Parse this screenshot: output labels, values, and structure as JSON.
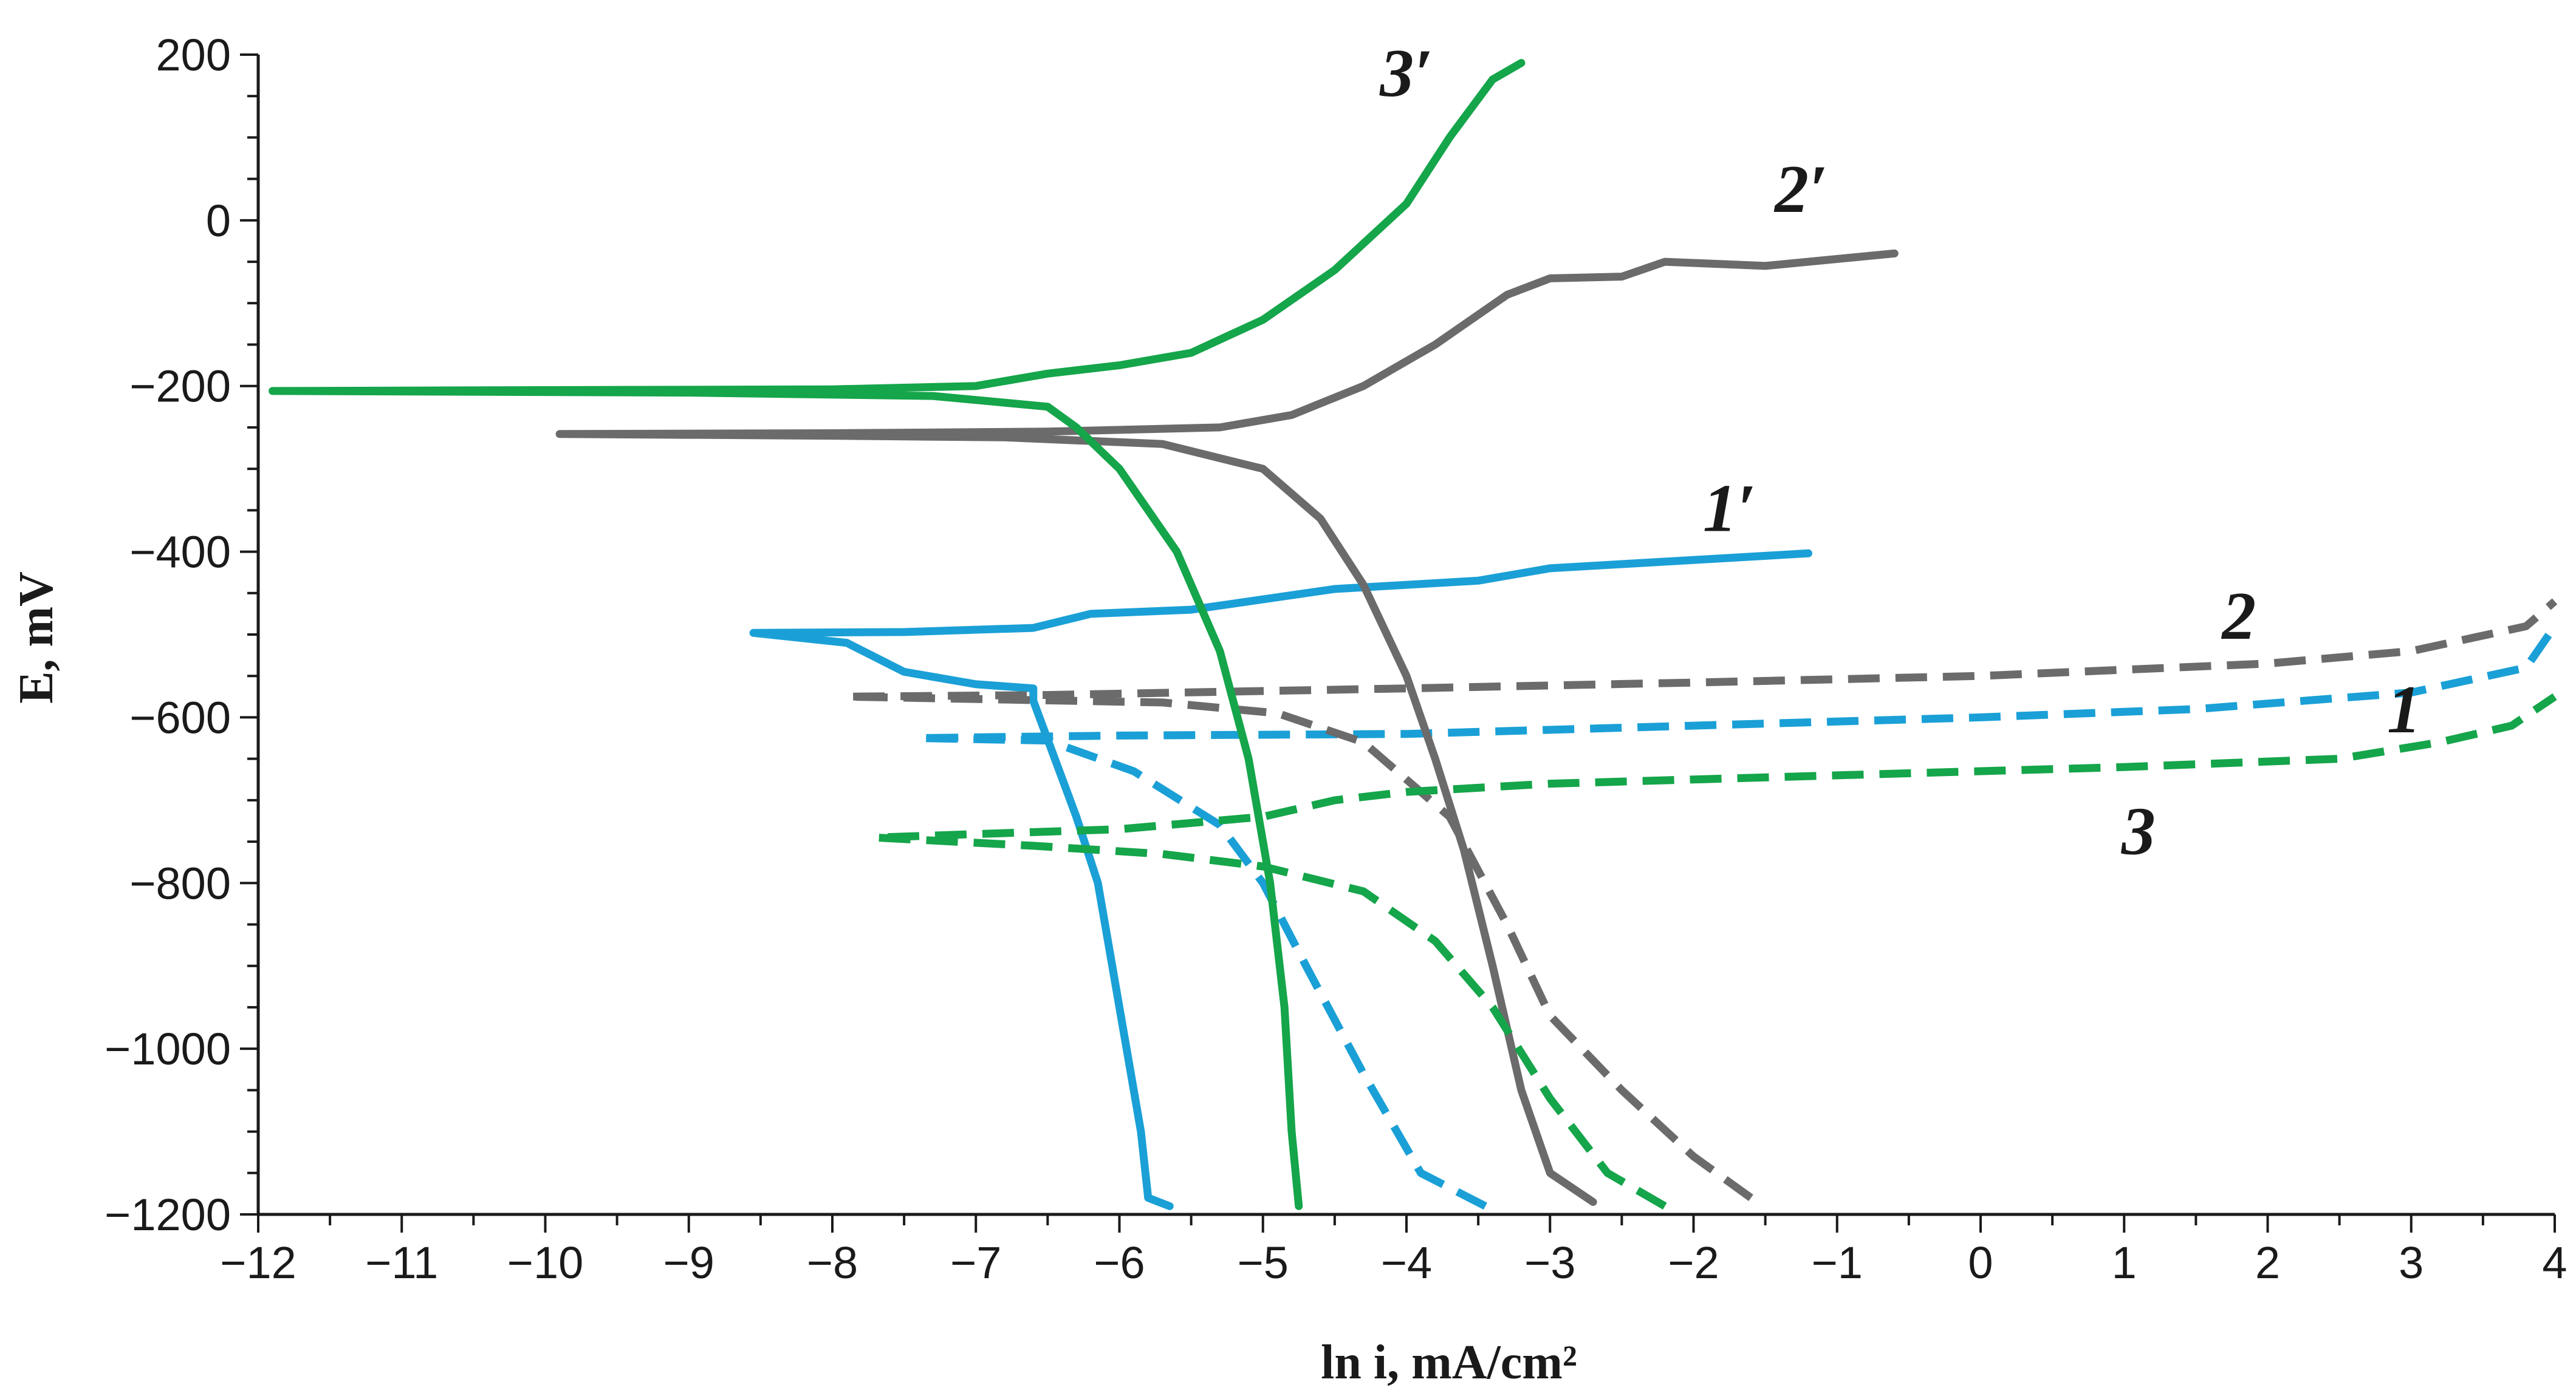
{
  "colors": {
    "blue": "#1aa0d6",
    "gray": "#6b6b6b",
    "green": "#15a54a",
    "axis": "#1a1a1a"
  },
  "chart_data": {
    "type": "line",
    "xlabel": "ln i, mA/cm²",
    "ylabel": "E, mV",
    "xlim": [
      -12,
      4
    ],
    "ylim": [
      -1200,
      200
    ],
    "xticks": [
      "−12",
      "−11",
      "−10",
      "−9",
      "−8",
      "−7",
      "−6",
      "−5",
      "−4",
      "−3",
      "−2",
      "−1",
      "0",
      "1",
      "2",
      "3",
      "4"
    ],
    "yticks": [
      "200",
      "0",
      "−200",
      "−400",
      "−600",
      "−800",
      "−1000",
      "−1200"
    ],
    "grid": false,
    "series": [
      {
        "name": "1′",
        "color": "#1aa0d6",
        "dash": false,
        "points": [
          [
            -5.65,
            -1190
          ],
          [
            -5.8,
            -1180
          ],
          [
            -5.85,
            -1100
          ],
          [
            -5.95,
            -1000
          ],
          [
            -6.05,
            -900
          ],
          [
            -6.15,
            -800
          ],
          [
            -6.3,
            -720
          ],
          [
            -6.45,
            -650
          ],
          [
            -6.6,
            -580
          ],
          [
            -6.6,
            -565
          ],
          [
            -7.0,
            -560
          ],
          [
            -7.5,
            -545
          ],
          [
            -7.9,
            -510
          ],
          [
            -8.55,
            -498
          ],
          [
            -7.5,
            -497
          ],
          [
            -6.6,
            -492
          ],
          [
            -6.2,
            -475
          ],
          [
            -5.5,
            -470
          ],
          [
            -4.5,
            -445
          ],
          [
            -3.5,
            -435
          ],
          [
            -3.0,
            -420
          ],
          [
            -2.0,
            -410
          ],
          [
            -1.2,
            -402
          ]
        ]
      },
      {
        "name": "1",
        "color": "#1aa0d6",
        "dash": true,
        "points": [
          [
            -3.45,
            -1190
          ],
          [
            -3.9,
            -1150
          ],
          [
            -4.3,
            -1030
          ],
          [
            -4.7,
            -900
          ],
          [
            -5.0,
            -800
          ],
          [
            -5.3,
            -730
          ],
          [
            -5.9,
            -665
          ],
          [
            -6.5,
            -628
          ],
          [
            -7.4,
            -625
          ],
          [
            -6.0,
            -622
          ],
          [
            -4.0,
            -620
          ],
          [
            -2.0,
            -610
          ],
          [
            0.0,
            -600
          ],
          [
            1.5,
            -590
          ],
          [
            3.0,
            -570
          ],
          [
            3.8,
            -540
          ],
          [
            4.0,
            -490
          ]
        ]
      },
      {
        "name": "2′",
        "color": "#6b6b6b",
        "dash": false,
        "points": [
          [
            -2.7,
            -1185
          ],
          [
            -3.0,
            -1150
          ],
          [
            -3.2,
            -1050
          ],
          [
            -3.4,
            -900
          ],
          [
            -3.6,
            -760
          ],
          [
            -3.8,
            -650
          ],
          [
            -4.0,
            -550
          ],
          [
            -4.3,
            -440
          ],
          [
            -4.6,
            -360
          ],
          [
            -5.0,
            -300
          ],
          [
            -5.7,
            -270
          ],
          [
            -6.8,
            -262
          ],
          [
            -8.0,
            -260
          ],
          [
            -9.9,
            -258
          ],
          [
            -8.0,
            -257
          ],
          [
            -6.5,
            -255
          ],
          [
            -5.3,
            -250
          ],
          [
            -4.8,
            -235
          ],
          [
            -4.3,
            -200
          ],
          [
            -3.8,
            -150
          ],
          [
            -3.3,
            -90
          ],
          [
            -3.0,
            -70
          ],
          [
            -2.5,
            -68
          ],
          [
            -2.2,
            -50
          ],
          [
            -1.5,
            -55
          ],
          [
            -0.6,
            -40
          ]
        ]
      },
      {
        "name": "2",
        "color": "#6b6b6b",
        "dash": true,
        "points": [
          [
            -1.6,
            -1180
          ],
          [
            -2.0,
            -1130
          ],
          [
            -2.5,
            -1050
          ],
          [
            -3.0,
            -960
          ],
          [
            -3.3,
            -850
          ],
          [
            -3.7,
            -720
          ],
          [
            -4.3,
            -630
          ],
          [
            -4.9,
            -595
          ],
          [
            -5.7,
            -582
          ],
          [
            -7.9,
            -575
          ],
          [
            -6.5,
            -573
          ],
          [
            -4.0,
            -565
          ],
          [
            -2.0,
            -558
          ],
          [
            0.0,
            -550
          ],
          [
            2.0,
            -535
          ],
          [
            3.0,
            -520
          ],
          [
            3.8,
            -490
          ],
          [
            4.0,
            -460
          ]
        ]
      },
      {
        "name": "3′",
        "color": "#15a54a",
        "dash": false,
        "points": [
          [
            -4.75,
            -1190
          ],
          [
            -4.8,
            -1100
          ],
          [
            -4.85,
            -950
          ],
          [
            -4.95,
            -800
          ],
          [
            -5.1,
            -650
          ],
          [
            -5.3,
            -520
          ],
          [
            -5.6,
            -400
          ],
          [
            -6.0,
            -300
          ],
          [
            -6.3,
            -250
          ],
          [
            -6.5,
            -225
          ],
          [
            -7.3,
            -212
          ],
          [
            -9.0,
            -208
          ],
          [
            -11.9,
            -206
          ],
          [
            -10.0,
            -205
          ],
          [
            -8.0,
            -204
          ],
          [
            -7.0,
            -200
          ],
          [
            -6.5,
            -185
          ],
          [
            -6.0,
            -175
          ],
          [
            -5.5,
            -160
          ],
          [
            -5.0,
            -120
          ],
          [
            -4.5,
            -60
          ],
          [
            -4.0,
            20
          ],
          [
            -3.7,
            100
          ],
          [
            -3.4,
            170
          ],
          [
            -3.2,
            190
          ]
        ]
      },
      {
        "name": "3",
        "color": "#15a54a",
        "dash": true,
        "points": [
          [
            -2.2,
            -1190
          ],
          [
            -2.6,
            -1150
          ],
          [
            -3.0,
            -1060
          ],
          [
            -3.4,
            -950
          ],
          [
            -3.8,
            -870
          ],
          [
            -4.3,
            -810
          ],
          [
            -5.0,
            -780
          ],
          [
            -5.7,
            -765
          ],
          [
            -6.6,
            -755
          ],
          [
            -7.7,
            -745
          ],
          [
            -6.0,
            -735
          ],
          [
            -5.0,
            -720
          ],
          [
            -4.5,
            -700
          ],
          [
            -4.0,
            -690
          ],
          [
            -3.0,
            -680
          ],
          [
            -1.0,
            -670
          ],
          [
            1.0,
            -660
          ],
          [
            2.5,
            -650
          ],
          [
            3.2,
            -630
          ],
          [
            3.7,
            -610
          ],
          [
            4.0,
            -575
          ]
        ]
      }
    ],
    "labels": [
      {
        "text": "3′",
        "x": -4.0,
        "y": 150
      },
      {
        "text": "2′",
        "x": -1.25,
        "y": 10
      },
      {
        "text": "1′",
        "x": -1.75,
        "y": -375
      },
      {
        "text": "2",
        "x": 1.8,
        "y": -505
      },
      {
        "text": "1",
        "x": 2.95,
        "y": -618
      },
      {
        "text": "3",
        "x": 1.1,
        "y": -765
      }
    ]
  }
}
